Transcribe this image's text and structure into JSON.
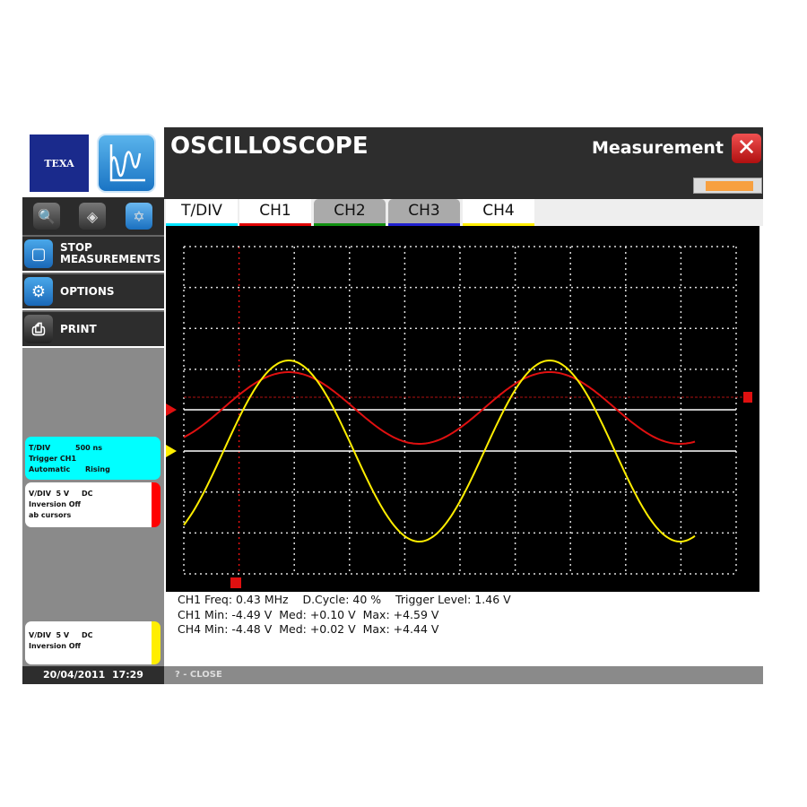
{
  "logo": {
    "brand": "TEXA"
  },
  "header": {
    "title": "OSCILLOSCOPE",
    "mode": "Measurement",
    "dropdown_color": "#f7a040"
  },
  "toolbar": {
    "icons": [
      "zoom-icon",
      "handshake-icon",
      "cursor-measure-icon"
    ]
  },
  "sidebar": {
    "items": [
      {
        "label": "STOP\nMEASUREMENTS",
        "icon": "stop-icon"
      },
      {
        "label": "OPTIONS",
        "icon": "gear-icon"
      },
      {
        "label": "PRINT",
        "icon": "printer-icon"
      }
    ]
  },
  "cards": {
    "tdiv": {
      "line1": "T/DIV          500 ns",
      "line2": "Trigger CH1",
      "line3": "Automatic      Rising",
      "color": "#00ffff"
    },
    "ch1": {
      "line1": "V/DIV  5 V     DC",
      "line2": "Inversion Off",
      "line3": "ab cursors",
      "color": "#ff0000"
    },
    "ch4": {
      "line1": "V/DIV  5 V     DC",
      "line2": "Inversion Off",
      "color": "#ffee00"
    }
  },
  "datetime": "20/04/2011  17:29",
  "tabs": [
    {
      "label": "T/DIV",
      "color": "#00e5ff",
      "active": true
    },
    {
      "label": "CH1",
      "color": "#e00000",
      "active": true
    },
    {
      "label": "CH2",
      "color": "#109010",
      "active": false
    },
    {
      "label": "CH3",
      "color": "#2020d0",
      "active": false
    },
    {
      "label": "CH4",
      "color": "#ffee00",
      "active": true
    }
  ],
  "measurements": [
    "CH1 Freq: 0.43 MHz    D.Cycle: 40 %    Trigger Level: 1.46 V",
    "CH1 Min: -4.49 V  Med: +0.10 V  Max: +4.59 V",
    "CH4 Min: -4.48 V  Med: +0.02 V  Max: +4.44 V"
  ],
  "footer": {
    "close_label": "? - CLOSE"
  },
  "colors": {
    "ch1": "#e01010",
    "ch4": "#ffee00",
    "grid": "#dddddd"
  }
}
